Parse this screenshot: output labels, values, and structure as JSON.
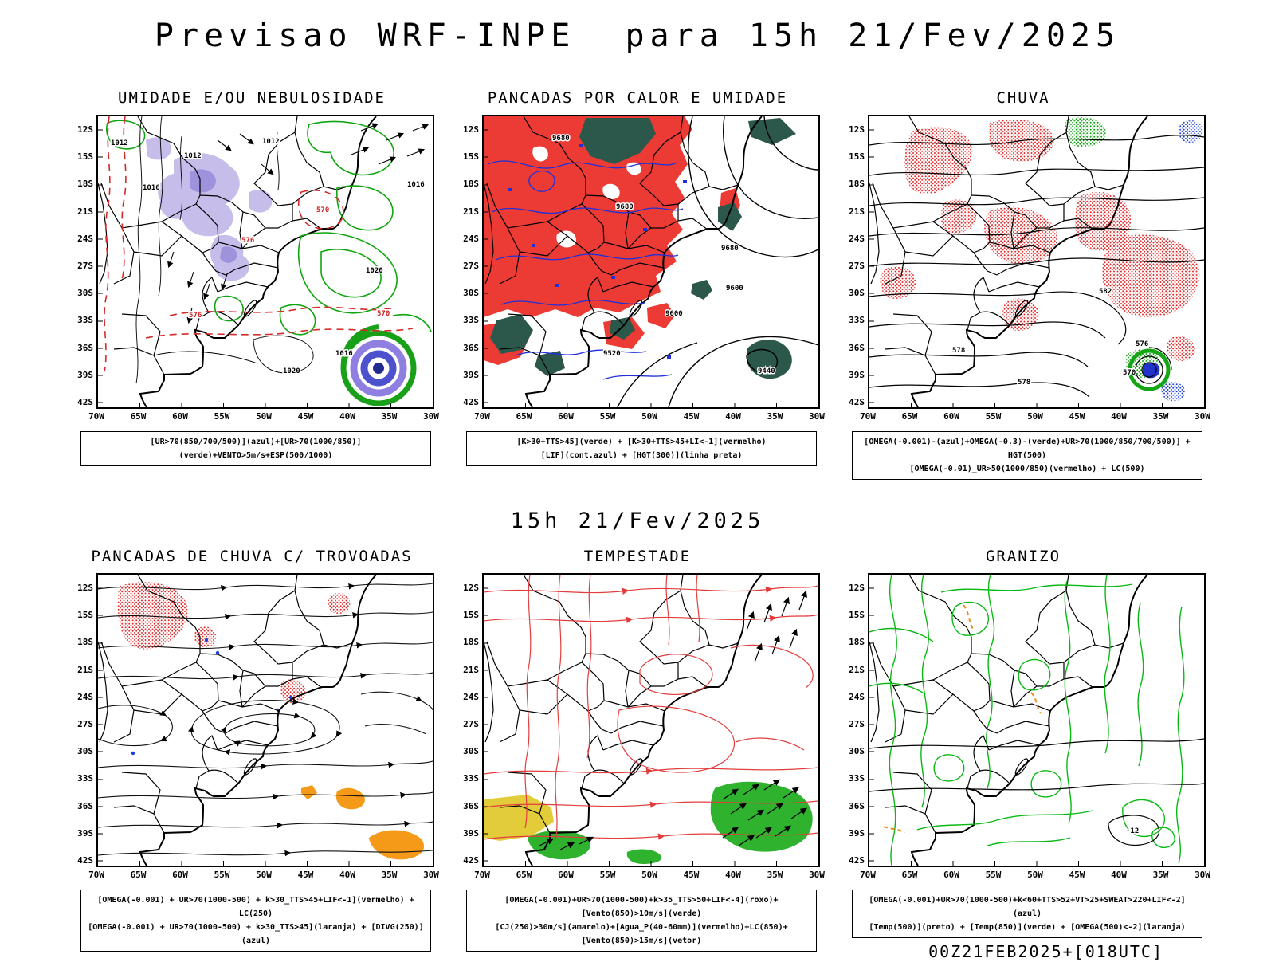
{
  "page_title": "Previsao WRF-INPE  para 15h 21/Fev/2025",
  "mid_caption": "15h 21/Fev/2025",
  "footer_note": "00Z21FEB2025+[018UTC]",
  "axes": {
    "lat_ticks": [
      "12S",
      "15S",
      "18S",
      "21S",
      "24S",
      "27S",
      "30S",
      "33S",
      "36S",
      "39S",
      "42S"
    ],
    "lon_ticks": [
      "70W",
      "65W",
      "60W",
      "55W",
      "50W",
      "45W",
      "40W",
      "35W",
      "30W"
    ]
  },
  "colors": {
    "green_contour": "#10a510",
    "red": "#d42a2a",
    "blue_contour": "#2030d8",
    "lavender_shading": "#c6bdeb",
    "dark_teal_fill": "#2b584a",
    "orange_fill": "#f49a18",
    "yellow_fill": "#e3cc3a",
    "green_fill": "#2fb32f",
    "black": "#000000"
  },
  "panels": [
    {
      "id": "umidade",
      "title": "UMIDADE E/OU NEBULOSIDADE",
      "caption_lines": [
        "[UR>70(850/700/500)](azul)+[UR>70(1000/850)](verde)+VENTO>5m/s+ESP(500/1000)"
      ],
      "contour_labels": [
        "1012",
        "1012",
        "1016",
        "1012",
        "1016",
        "576",
        "570",
        "1020",
        "576",
        "570",
        "1020",
        "1016"
      ]
    },
    {
      "id": "pancadas-calor",
      "title": "PANCADAS POR CALOR E UMIDADE",
      "caption_lines": [
        "[K>30+TTS>45](verde) + [K>30+TTS>45+LI<-1](vermelho)",
        "[LIF](cont.azul) + [HGT(300)](linha preta)"
      ],
      "contour_labels": [
        "9680",
        "9680",
        "9680",
        "9600",
        "9600",
        "9520",
        "9440"
      ]
    },
    {
      "id": "chuva",
      "title": "CHUVA",
      "caption_lines": [
        "[OMEGA(-0.001)-(azul)+OMEGA(-0.3)-(verde)+UR>70(1000/850/700/500)] + HGT(500)",
        "[OMEGA(-0.01)_UR>50(1000/850)(vermelho) + LC(500)"
      ],
      "contour_labels": [
        "582",
        "578",
        "576",
        "570",
        "578"
      ]
    },
    {
      "id": "trovoadas",
      "title": "PANCADAS DE CHUVA C/ TROVOADAS",
      "caption_lines": [
        "[OMEGA(-0.001) + UR>70(1000-500) + k>30_TTS>45+LIF<-1](vermelho) + LC(250)",
        "[OMEGA(-0.001) + UR>70(1000-500) + k>30_TTS>45](laranja) + [DIVG(250)](azul)"
      ],
      "contour_labels": []
    },
    {
      "id": "tempestade",
      "title": "TEMPESTADE",
      "caption_lines": [
        "[OMEGA(-0.001)+UR>70(1000-500)+k>35_TTS>50+LIF<-4](roxo)+[Vento(850)>10m/s](verde)",
        "[CJ(250)>30m/s](amarelo)+[Agua_P(40-60mm)](vermelho)+LC(850)+[Vento(850)>15m/s](vetor)"
      ],
      "contour_labels": []
    },
    {
      "id": "granizo",
      "title": "GRANIZO",
      "caption_lines": [
        "[OMEGA(-0.001)+UR>70(1000-500)+k<60+TTS>52+VT>25+SWEAT>220+LIF<-2](azul)",
        "[Temp(500)](preto) + [Temp(850)](verde) + [OMEGA(500)<-2](laranja)"
      ],
      "contour_labels": [
        "-12"
      ]
    }
  ]
}
